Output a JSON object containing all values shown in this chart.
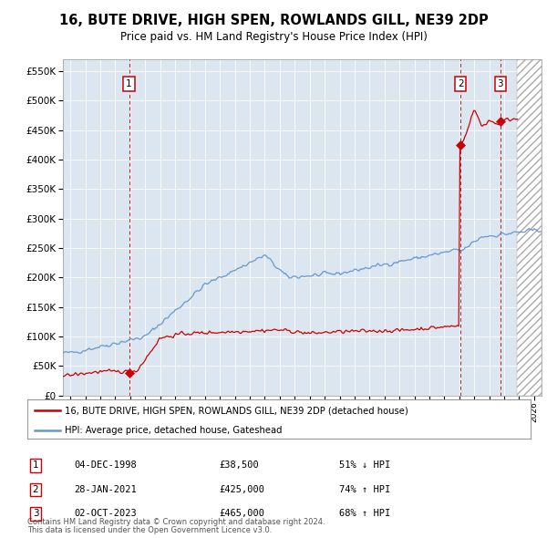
{
  "title": "16, BUTE DRIVE, HIGH SPEN, ROWLANDS GILL, NE39 2DP",
  "subtitle": "Price paid vs. HM Land Registry's House Price Index (HPI)",
  "sales": [
    {
      "date_str": "04-DEC-1998",
      "date_x": 1998.92,
      "price": 38500,
      "label": "1"
    },
    {
      "date_str": "28-JAN-2021",
      "date_x": 2021.08,
      "price": 425000,
      "label": "2"
    },
    {
      "date_str": "02-OCT-2023",
      "date_x": 2023.75,
      "price": 465000,
      "label": "3"
    }
  ],
  "legend_property": "16, BUTE DRIVE, HIGH SPEN, ROWLANDS GILL, NE39 2DP (detached house)",
  "legend_hpi": "HPI: Average price, detached house, Gateshead",
  "table": [
    {
      "num": "1",
      "date": "04-DEC-1998",
      "price": "£38,500",
      "pct": "51% ↓ HPI"
    },
    {
      "num": "2",
      "date": "28-JAN-2021",
      "price": "£425,000",
      "pct": "74% ↑ HPI"
    },
    {
      "num": "3",
      "date": "02-OCT-2023",
      "price": "£465,000",
      "pct": "68% ↑ HPI"
    }
  ],
  "footer1": "Contains HM Land Registry data © Crown copyright and database right 2024.",
  "footer2": "This data is licensed under the Open Government Licence v3.0.",
  "red_color": "#cc0000",
  "blue_color": "#6699cc",
  "hatch_start": 2024.83,
  "xmin": 1994.5,
  "xmax": 2026.5,
  "ymin": 0,
  "ymax": 570000,
  "ylim_top": 550000,
  "background_color": "#dce6f1"
}
